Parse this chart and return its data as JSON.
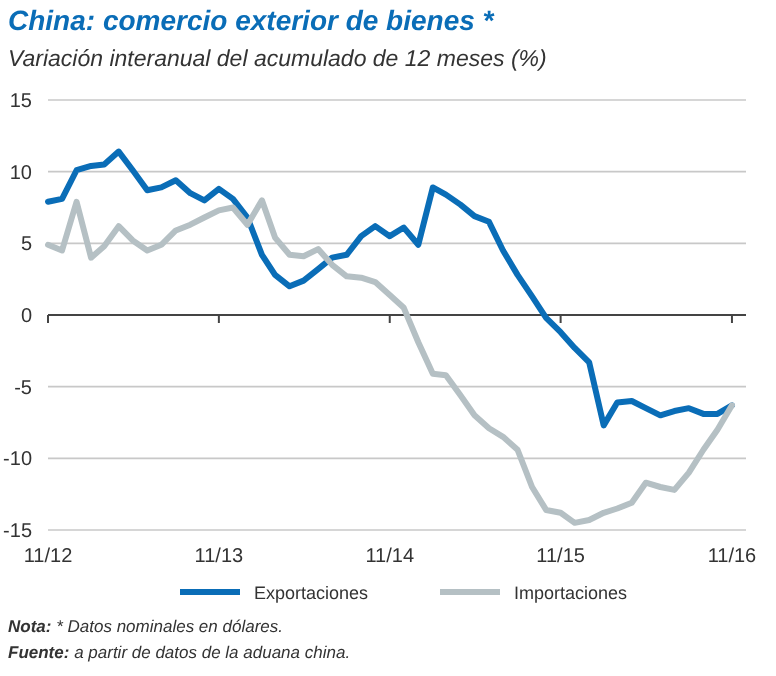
{
  "chart_data": {
    "type": "line",
    "title": "China: comercio exterior de bienes *",
    "subtitle": "Variación interanual del acumulado de 12 meses (%)",
    "x": [
      "2012-11",
      "2012-12",
      "2013-01",
      "2013-02",
      "2013-03",
      "2013-04",
      "2013-05",
      "2013-06",
      "2013-07",
      "2013-08",
      "2013-09",
      "2013-10",
      "2013-11",
      "2013-12",
      "2014-01",
      "2014-02",
      "2014-03",
      "2014-04",
      "2014-05",
      "2014-06",
      "2014-07",
      "2014-08",
      "2014-09",
      "2014-10",
      "2014-11",
      "2014-12",
      "2015-01",
      "2015-02",
      "2015-03",
      "2015-04",
      "2015-05",
      "2015-06",
      "2015-07",
      "2015-08",
      "2015-09",
      "2015-10",
      "2015-11",
      "2015-12",
      "2016-01",
      "2016-02",
      "2016-03",
      "2016-04",
      "2016-05",
      "2016-06",
      "2016-07",
      "2016-08",
      "2016-09",
      "2016-10",
      "2016-11"
    ],
    "series": [
      {
        "name": "Exportaciones",
        "color": "#0a6db7",
        "values": [
          7.9,
          8.1,
          10.1,
          10.4,
          10.5,
          11.4,
          10.1,
          8.7,
          8.9,
          9.4,
          8.5,
          8.0,
          8.8,
          8.1,
          6.8,
          4.2,
          2.8,
          2.0,
          2.4,
          3.2,
          4.0,
          4.2,
          5.5,
          6.2,
          5.5,
          6.1,
          4.9,
          8.9,
          8.4,
          7.7,
          6.9,
          6.5,
          4.5,
          2.8,
          1.3,
          -0.2,
          -1.2,
          -2.3,
          -3.3,
          -7.7,
          -6.1,
          -6.0,
          -6.5,
          -7.0,
          -6.7,
          -6.5,
          -6.9,
          -6.9,
          -6.3
        ]
      },
      {
        "name": "Importaciones",
        "color": "#b5c0c4",
        "values": [
          4.9,
          4.5,
          7.9,
          4.0,
          4.8,
          6.2,
          5.2,
          4.5,
          4.9,
          5.9,
          6.3,
          6.8,
          7.3,
          7.5,
          6.3,
          8.0,
          5.4,
          4.2,
          4.1,
          4.6,
          3.5,
          2.7,
          2.6,
          2.3,
          1.4,
          0.5,
          -1.9,
          -4.1,
          -4.2,
          -5.6,
          -7.0,
          -7.9,
          -8.5,
          -9.4,
          -12.0,
          -13.6,
          -13.8,
          -14.5,
          -14.3,
          -13.8,
          -13.5,
          -13.1,
          -11.7,
          -12.0,
          -12.2,
          -11.0,
          -9.4,
          -8.0,
          -6.3
        ]
      }
    ],
    "xlim": [
      "2012-11",
      "2016-12"
    ],
    "xticks": [
      {
        "value": "2012-11",
        "label": "11/12"
      },
      {
        "value": "2013-11",
        "label": "11/13"
      },
      {
        "value": "2014-11",
        "label": "11/14"
      },
      {
        "value": "2015-11",
        "label": "11/15"
      },
      {
        "value": "2016-11",
        "label": "11/16"
      }
    ],
    "ylim": [
      -15,
      15
    ],
    "yticks": [
      -15,
      -10,
      -5,
      0,
      5,
      10,
      15
    ],
    "grid": "y",
    "legend": "bottom",
    "marker": "none",
    "line_style": "solid",
    "annotations": [
      "Nota: * Datos nominales en dólares.",
      "Fuente: a partir de datos de la aduana china."
    ]
  }
}
